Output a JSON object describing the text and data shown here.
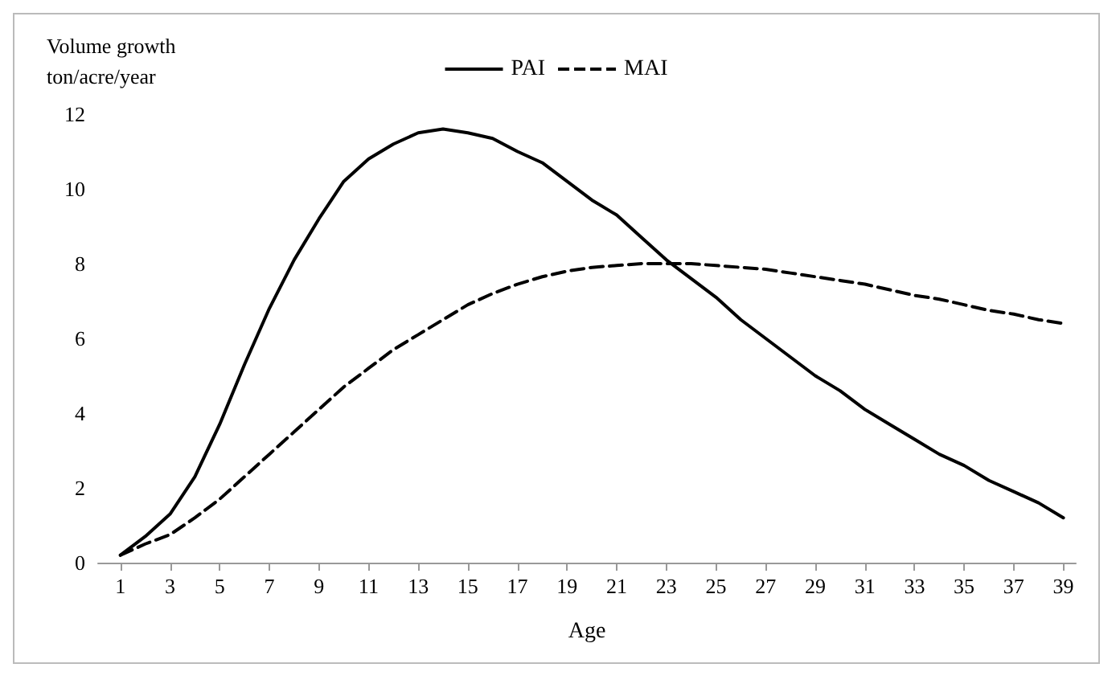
{
  "chart_data": {
    "type": "line",
    "ylabel": "Volume growth\nton/acre/year",
    "xlabel": "Age",
    "x": [
      1,
      2,
      3,
      4,
      5,
      6,
      7,
      8,
      9,
      10,
      11,
      12,
      13,
      14,
      15,
      16,
      17,
      18,
      19,
      20,
      21,
      22,
      23,
      24,
      25,
      26,
      27,
      28,
      29,
      30,
      31,
      32,
      33,
      34,
      35,
      36,
      37,
      38,
      39
    ],
    "xlim": [
      0.1,
      39.5
    ],
    "xticks": [
      1,
      3,
      5,
      7,
      9,
      11,
      13,
      15,
      17,
      19,
      21,
      23,
      25,
      27,
      29,
      31,
      33,
      35,
      37,
      39
    ],
    "series": [
      {
        "name": "PAI",
        "color": "#000000",
        "line_style": "solid",
        "values": [
          0.2,
          0.7,
          1.3,
          2.3,
          3.7,
          5.3,
          6.8,
          8.1,
          9.2,
          10.2,
          10.8,
          11.2,
          11.5,
          11.6,
          11.5,
          11.35,
          11.0,
          10.7,
          10.2,
          9.7,
          9.3,
          8.7,
          8.1,
          7.6,
          7.1,
          6.5,
          6.0,
          5.5,
          5.0,
          4.6,
          4.1,
          3.7,
          3.3,
          2.9,
          2.6,
          2.2,
          1.9,
          1.6,
          1.2
        ]
      },
      {
        "name": "MAI",
        "color": "#000000",
        "line_style": "dashed",
        "values": [
          0.2,
          0.5,
          0.75,
          1.2,
          1.7,
          2.3,
          2.9,
          3.5,
          4.1,
          4.7,
          5.2,
          5.7,
          6.1,
          6.5,
          6.9,
          7.2,
          7.45,
          7.65,
          7.8,
          7.9,
          7.95,
          8.0,
          8.0,
          8.0,
          7.95,
          7.9,
          7.85,
          7.75,
          7.65,
          7.55,
          7.45,
          7.3,
          7.15,
          7.05,
          6.9,
          6.75,
          6.65,
          6.5,
          6.4
        ]
      }
    ],
    "ylim": [
      0,
      12
    ],
    "yticks": [
      0,
      2,
      4,
      6,
      8,
      10,
      12
    ],
    "grid": false,
    "legend": "top",
    "marker": "none"
  }
}
